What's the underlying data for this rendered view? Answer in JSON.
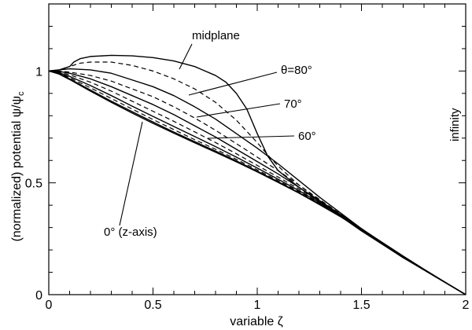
{
  "chart_data": {
    "type": "line",
    "title": "",
    "xlabel": "variable ζ",
    "ylabel_main": "(normalized) potential ψ/ψ",
    "ylabel_sub": "c",
    "xlim": [
      0,
      2
    ],
    "ylim": [
      0,
      1.3
    ],
    "x_ticks": [
      0,
      0.5,
      1,
      1.5,
      2
    ],
    "x_tick_labels": [
      "0",
      "0.5",
      "1",
      "1.5",
      "2"
    ],
    "y_ticks": [
      0,
      0.5,
      1
    ],
    "y_tick_labels": [
      "0",
      "0.5",
      "1"
    ],
    "grid": false,
    "legend": "none",
    "annotations": {
      "midplane": "midplane",
      "theta80": "θ=80°",
      "deg70": "70°",
      "deg60": "60°",
      "deg0": "0° (z-axis)",
      "infinity": "infinity"
    },
    "series": [
      {
        "style": "solid",
        "x": [
          0,
          0.05,
          0.1,
          0.12,
          0.15,
          0.2,
          0.3,
          0.4,
          0.5,
          0.6,
          0.7,
          0.8,
          0.85,
          0.9,
          0.95,
          1.0,
          1.05,
          1.1,
          1.2,
          1.3,
          1.4,
          1.5,
          1.6,
          1.7,
          1.8,
          1.9,
          2.0
        ],
        "y": [
          1.0,
          1.005,
          1.02,
          1.04,
          1.055,
          1.065,
          1.07,
          1.068,
          1.06,
          1.045,
          1.02,
          0.98,
          0.95,
          0.9,
          0.83,
          0.72,
          0.62,
          0.555,
          0.48,
          0.415,
          0.35,
          0.285,
          0.225,
          0.165,
          0.11,
          0.055,
          0.0
        ]
      },
      {
        "style": "dashed",
        "x": [
          0,
          0.05,
          0.1,
          0.15,
          0.2,
          0.3,
          0.4,
          0.5,
          0.6,
          0.7,
          0.8,
          0.9,
          1.0,
          1.05,
          1.1,
          1.2,
          1.3,
          1.4,
          1.5,
          1.6,
          1.7,
          1.8,
          1.9,
          2.0
        ],
        "y": [
          1.0,
          1.005,
          1.02,
          1.035,
          1.04,
          1.04,
          1.025,
          1.0,
          0.965,
          0.92,
          0.86,
          0.78,
          0.68,
          0.625,
          0.575,
          0.49,
          0.42,
          0.355,
          0.29,
          0.228,
          0.168,
          0.11,
          0.055,
          0.0
        ]
      },
      {
        "style": "solid",
        "x": [
          0,
          0.05,
          0.1,
          0.2,
          0.3,
          0.4,
          0.5,
          0.6,
          0.7,
          0.8,
          0.9,
          1.0,
          1.1,
          1.2,
          1.3,
          1.4,
          1.5,
          1.6,
          1.7,
          1.8,
          1.9,
          2.0
        ],
        "y": [
          1.0,
          1.005,
          1.01,
          1.005,
          0.99,
          0.96,
          0.93,
          0.89,
          0.84,
          0.785,
          0.72,
          0.655,
          0.585,
          0.51,
          0.435,
          0.365,
          0.295,
          0.23,
          0.17,
          0.112,
          0.056,
          0.0
        ]
      },
      {
        "style": "dashed",
        "x": [
          0,
          0.05,
          0.1,
          0.2,
          0.3,
          0.4,
          0.5,
          0.6,
          0.7,
          0.8,
          0.9,
          1.0,
          1.1,
          1.2,
          1.3,
          1.4,
          1.5,
          1.6,
          1.7,
          1.8,
          1.9,
          2.0
        ],
        "y": [
          1.0,
          1.0,
          0.995,
          0.98,
          0.955,
          0.92,
          0.885,
          0.84,
          0.79,
          0.735,
          0.675,
          0.615,
          0.555,
          0.49,
          0.425,
          0.36,
          0.295,
          0.232,
          0.171,
          0.113,
          0.056,
          0.0
        ]
      },
      {
        "style": "solid",
        "x": [
          0,
          0.05,
          0.1,
          0.2,
          0.3,
          0.4,
          0.5,
          0.6,
          0.7,
          0.8,
          0.9,
          1.0,
          1.1,
          1.2,
          1.3,
          1.4,
          1.5,
          1.6,
          1.7,
          1.8,
          1.9,
          2.0
        ],
        "y": [
          1.0,
          0.998,
          0.99,
          0.965,
          0.93,
          0.89,
          0.85,
          0.805,
          0.755,
          0.705,
          0.65,
          0.595,
          0.54,
          0.48,
          0.42,
          0.358,
          0.295,
          0.233,
          0.172,
          0.113,
          0.056,
          0.0
        ]
      },
      {
        "style": "dashed",
        "x": [
          0,
          0.05,
          0.1,
          0.2,
          0.3,
          0.4,
          0.5,
          0.6,
          0.7,
          0.8,
          0.9,
          1.0,
          1.1,
          1.2,
          1.3,
          1.4,
          1.5,
          1.6,
          1.7,
          1.8,
          1.9,
          2.0
        ],
        "y": [
          1.0,
          0.995,
          0.983,
          0.95,
          0.91,
          0.865,
          0.82,
          0.775,
          0.728,
          0.68,
          0.63,
          0.578,
          0.526,
          0.472,
          0.415,
          0.355,
          0.294,
          0.233,
          0.172,
          0.113,
          0.056,
          0.0
        ]
      },
      {
        "style": "solid",
        "x": [
          0,
          0.05,
          0.1,
          0.2,
          0.3,
          0.4,
          0.5,
          0.6,
          0.7,
          0.8,
          0.9,
          1.0,
          1.1,
          1.2,
          1.3,
          1.4,
          1.5,
          1.6,
          1.7,
          1.8,
          1.9,
          2.0
        ],
        "y": [
          1.0,
          0.992,
          0.976,
          0.935,
          0.89,
          0.843,
          0.797,
          0.752,
          0.707,
          0.662,
          0.615,
          0.566,
          0.516,
          0.465,
          0.41,
          0.353,
          0.293,
          0.233,
          0.172,
          0.113,
          0.056,
          0.0
        ]
      },
      {
        "style": "dashed",
        "x": [
          0,
          0.05,
          0.1,
          0.2,
          0.3,
          0.4,
          0.5,
          0.6,
          0.7,
          0.8,
          0.9,
          1.0,
          1.1,
          1.2,
          1.3,
          1.4,
          1.5,
          1.6,
          1.7,
          1.8,
          1.9,
          2.0
        ],
        "y": [
          1.0,
          0.99,
          0.97,
          0.925,
          0.877,
          0.83,
          0.783,
          0.738,
          0.693,
          0.65,
          0.605,
          0.558,
          0.51,
          0.46,
          0.407,
          0.351,
          0.292,
          0.232,
          0.172,
          0.113,
          0.056,
          0.0
        ]
      },
      {
        "style": "solid",
        "x": [
          0,
          0.05,
          0.1,
          0.2,
          0.3,
          0.4,
          0.5,
          0.6,
          0.7,
          0.8,
          0.9,
          1.0,
          1.1,
          1.2,
          1.3,
          1.4,
          1.5,
          1.6,
          1.7,
          1.8,
          1.9,
          2.0
        ],
        "y": [
          1.0,
          0.988,
          0.965,
          0.915,
          0.865,
          0.818,
          0.772,
          0.727,
          0.684,
          0.642,
          0.598,
          0.552,
          0.505,
          0.456,
          0.404,
          0.349,
          0.291,
          0.232,
          0.172,
          0.113,
          0.056,
          0.0
        ]
      },
      {
        "style": "solid",
        "x": [
          0,
          0.05,
          0.1,
          0.2,
          0.3,
          0.4,
          0.5,
          0.6,
          0.7,
          0.8,
          0.9,
          1.0,
          1.1,
          1.2,
          1.3,
          1.4,
          1.5,
          1.6,
          1.7,
          1.8,
          1.9,
          2.0
        ],
        "y": [
          1.0,
          0.986,
          0.962,
          0.91,
          0.86,
          0.812,
          0.766,
          0.722,
          0.679,
          0.637,
          0.594,
          0.549,
          0.502,
          0.454,
          0.402,
          0.348,
          0.29,
          0.231,
          0.172,
          0.113,
          0.056,
          0.0
        ]
      }
    ]
  }
}
